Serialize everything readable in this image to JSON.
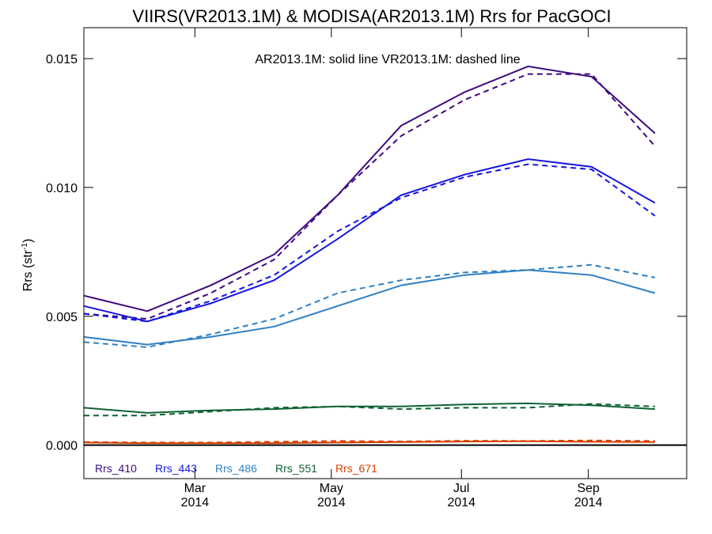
{
  "chart_data": {
    "type": "line",
    "title": "VIIRS(VR2013.1M) & MODISA(AR2013.1M)  Rrs for PacGOCI",
    "annotation": "AR2013.1M: solid line   VR2013.1M: dashed line",
    "xlabel": "",
    "ylabel": "Rrs (str",
    "ylabel_sup": "-1",
    "ylabel_close": ")",
    "xlim": [
      0.0,
      9.5
    ],
    "ylim": [
      -0.0013,
      0.0162
    ],
    "grid": false,
    "legend_placement": "bottom-left",
    "x": [
      0,
      1,
      2,
      3,
      4,
      5,
      6,
      7,
      8,
      9
    ],
    "x_ticks": [
      {
        "x": 1.75,
        "month": "Mar",
        "year": "2014"
      },
      {
        "x": 3.9,
        "month": "May",
        "year": "2014"
      },
      {
        "x": 5.95,
        "month": "Jul",
        "year": "2014"
      },
      {
        "x": 7.95,
        "month": "Sep",
        "year": "2014"
      }
    ],
    "y_ticks": [
      {
        "value": 0.0,
        "label": "0.000"
      },
      {
        "value": 0.005,
        "label": "0.005"
      },
      {
        "value": 0.01,
        "label": "0.010"
      },
      {
        "value": 0.015,
        "label": "0.015"
      }
    ],
    "series": [
      {
        "name": "Rrs_410",
        "color": "#3d0a82",
        "solid": [
          0.0058,
          0.0052,
          0.0062,
          0.0074,
          0.0097,
          0.0124,
          0.0137,
          0.0147,
          0.0143,
          0.0121
        ],
        "dashed": [
          0.0051,
          0.0049,
          0.0059,
          0.0072,
          0.0097,
          0.012,
          0.0134,
          0.0144,
          0.0144,
          0.0116
        ]
      },
      {
        "name": "Rrs_443",
        "color": "#1515e0",
        "solid": [
          0.0054,
          0.0048,
          0.0055,
          0.0064,
          0.008,
          0.0097,
          0.0105,
          0.0111,
          0.0108,
          0.0094
        ],
        "dashed": [
          0.0051,
          0.0048,
          0.0056,
          0.0066,
          0.0083,
          0.0096,
          0.0104,
          0.0109,
          0.0107,
          0.0089
        ]
      },
      {
        "name": "Rrs_486",
        "color": "#2f80c2",
        "solid": [
          0.0042,
          0.0039,
          0.0042,
          0.0046,
          0.0054,
          0.0062,
          0.0066,
          0.0068,
          0.0066,
          0.0059
        ],
        "dashed": [
          0.004,
          0.0038,
          0.0043,
          0.0049,
          0.0059,
          0.0064,
          0.0067,
          0.0068,
          0.007,
          0.0065
        ]
      },
      {
        "name": "Rrs_551",
        "color": "#0e6232",
        "solid": [
          0.00145,
          0.00125,
          0.00135,
          0.0014,
          0.0015,
          0.0015,
          0.00158,
          0.00162,
          0.00155,
          0.0014
        ],
        "dashed": [
          0.00115,
          0.00115,
          0.0013,
          0.00145,
          0.0015,
          0.0014,
          0.00145,
          0.00145,
          0.0016,
          0.0015
        ]
      },
      {
        "name": "Rrs_671",
        "color": "#d94000",
        "solid": [
          0.0001,
          8e-05,
          8e-05,
          8e-05,
          0.0001,
          0.00012,
          0.00014,
          0.00015,
          0.00013,
          0.00012
        ],
        "dashed": [
          0.00012,
          0.0001,
          0.0001,
          0.00013,
          0.00016,
          0.00014,
          0.00017,
          0.00016,
          0.00018,
          0.00016
        ]
      }
    ]
  }
}
